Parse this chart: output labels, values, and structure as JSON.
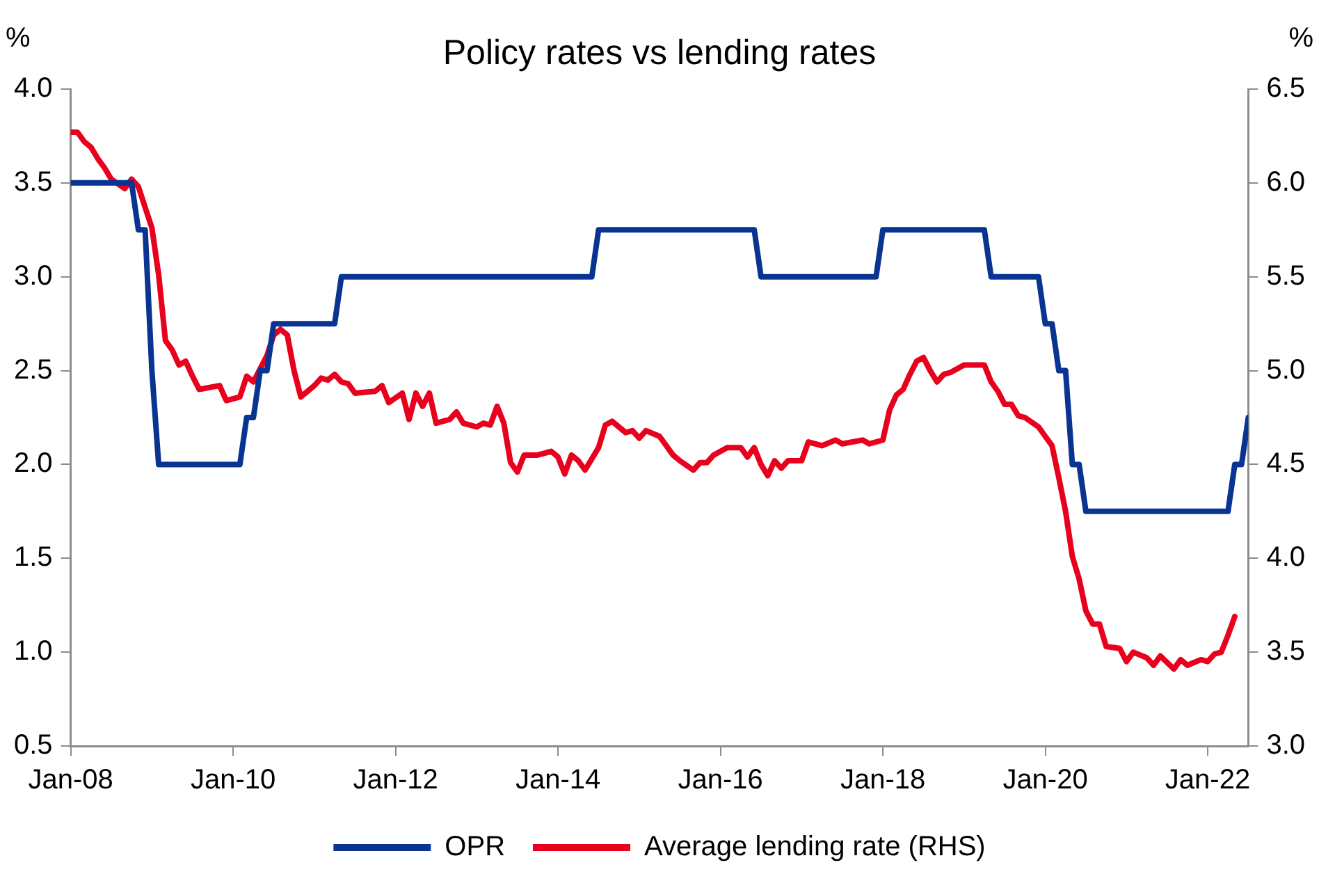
{
  "chart_data": {
    "type": "line",
    "title": "Policy rates vs lending rates",
    "ylabel": "%",
    "y2label": "%",
    "xlim": [
      "2008-01",
      "2022-07"
    ],
    "xticks": [
      {
        "value": "2008-01",
        "label": "Jan-08"
      },
      {
        "value": "2010-01",
        "label": "Jan-10"
      },
      {
        "value": "2012-01",
        "label": "Jan-12"
      },
      {
        "value": "2014-01",
        "label": "Jan-14"
      },
      {
        "value": "2016-01",
        "label": "Jan-16"
      },
      {
        "value": "2018-01",
        "label": "Jan-18"
      },
      {
        "value": "2020-01",
        "label": "Jan-20"
      },
      {
        "value": "2022-01",
        "label": "Jan-22"
      }
    ],
    "ylim": [
      0.5,
      4.0
    ],
    "yticks": [
      {
        "value": 0.5,
        "label": "0.5"
      },
      {
        "value": 1,
        "label": "1.0"
      },
      {
        "value": 1.5,
        "label": "1.5"
      },
      {
        "value": 2,
        "label": "2.0"
      },
      {
        "value": 2.5,
        "label": "2.5"
      },
      {
        "value": 3,
        "label": "3.0"
      },
      {
        "value": 3.5,
        "label": "3.5"
      },
      {
        "value": 4,
        "label": "4.0"
      }
    ],
    "y2lim": [
      3.0,
      6.5
    ],
    "y2ticks": [
      {
        "value": 3,
        "label": "3.0"
      },
      {
        "value": 3.5,
        "label": "3.5"
      },
      {
        "value": 4,
        "label": "4.0"
      },
      {
        "value": 4.5,
        "label": "4.5"
      },
      {
        "value": 5,
        "label": "5.0"
      },
      {
        "value": 5.5,
        "label": "5.5"
      },
      {
        "value": 6,
        "label": "6.0"
      },
      {
        "value": 6.5,
        "label": "6.5"
      }
    ],
    "grid": false,
    "legend": "bottom",
    "marker": "none",
    "line_style": "solid",
    "series": [
      {
        "name": "OPR",
        "color": "#0a3491",
        "axis": "y",
        "x": [
          "2008-01",
          "2008-10",
          "2008-11",
          "2008-12",
          "2009-01",
          "2009-02",
          "2010-02",
          "2010-03",
          "2010-04",
          "2010-05",
          "2010-06",
          "2010-07",
          "2011-04",
          "2011-05",
          "2014-06",
          "2014-07",
          "2016-06",
          "2016-07",
          "2017-12",
          "2018-01",
          "2019-04",
          "2019-05",
          "2019-12",
          "2020-01",
          "2020-02",
          "2020-03",
          "2020-04",
          "2020-05",
          "2020-06",
          "2020-07",
          "2022-04",
          "2022-05",
          "2022-06",
          "2022-07"
        ],
        "values": [
          3.5,
          3.5,
          3.25,
          3.25,
          2.5,
          2.0,
          2.0,
          2.25,
          2.25,
          2.5,
          2.5,
          2.75,
          2.75,
          3.0,
          3.0,
          3.25,
          3.25,
          3.0,
          3.0,
          3.25,
          3.25,
          3.0,
          3.0,
          2.75,
          2.75,
          2.5,
          2.5,
          2.0,
          2.0,
          1.75,
          1.75,
          2.0,
          2.0,
          2.25
        ]
      },
      {
        "name": "Average lending rate (RHS)",
        "color": "#e8001c",
        "axis": "y2",
        "x": [
          "2008-01",
          "2008-02",
          "2008-03",
          "2008-04",
          "2008-05",
          "2008-06",
          "2008-07",
          "2008-09",
          "2008-10",
          "2008-11",
          "2008-12",
          "2009-01",
          "2009-02",
          "2009-03",
          "2009-04",
          "2009-05",
          "2009-06",
          "2009-07",
          "2009-08",
          "2009-11",
          "2009-12",
          "2010-02",
          "2010-03",
          "2010-04",
          "2010-05",
          "2010-06",
          "2010-07",
          "2010-08",
          "2010-09",
          "2010-10",
          "2010-11",
          "2011-01",
          "2011-02",
          "2011-03",
          "2011-04",
          "2011-05",
          "2011-06",
          "2011-07",
          "2011-10",
          "2011-11",
          "2011-12",
          "2012-02",
          "2012-03",
          "2012-04",
          "2012-05",
          "2012-06",
          "2012-07",
          "2012-09",
          "2012-10",
          "2012-11",
          "2013-01",
          "2013-02",
          "2013-03",
          "2013-04",
          "2013-05",
          "2013-06",
          "2013-07",
          "2013-08",
          "2013-10",
          "2013-12",
          "2014-01",
          "2014-02",
          "2014-03",
          "2014-04",
          "2014-05",
          "2014-07",
          "2014-08",
          "2014-09",
          "2014-11",
          "2014-12",
          "2015-01",
          "2015-02",
          "2015-04",
          "2015-06",
          "2015-07",
          "2015-09",
          "2015-10",
          "2015-11",
          "2015-12",
          "2016-02",
          "2016-04",
          "2016-05",
          "2016-06",
          "2016-07",
          "2016-08",
          "2016-09",
          "2016-10",
          "2016-11",
          "2017-01",
          "2017-02",
          "2017-04",
          "2017-06",
          "2017-07",
          "2017-10",
          "2017-11",
          "2018-01",
          "2018-02",
          "2018-03",
          "2018-04",
          "2018-05",
          "2018-06",
          "2018-07",
          "2018-08",
          "2018-09",
          "2018-10",
          "2018-11",
          "2019-01",
          "2019-02",
          "2019-04",
          "2019-05",
          "2019-06",
          "2019-07",
          "2019-08",
          "2019-09",
          "2019-10",
          "2019-12",
          "2020-01",
          "2020-02",
          "2020-03",
          "2020-04",
          "2020-05",
          "2020-06",
          "2020-07",
          "2020-08",
          "2020-09",
          "2020-10",
          "2020-12",
          "2021-01",
          "2021-02",
          "2021-04",
          "2021-05",
          "2021-06",
          "2021-08",
          "2021-09",
          "2021-10",
          "2021-12",
          "2022-01",
          "2022-02",
          "2022-03",
          "2022-04",
          "2022-05"
        ],
        "values": [
          6.27,
          6.27,
          6.22,
          6.19,
          6.13,
          6.08,
          6.02,
          5.97,
          6.02,
          5.98,
          5.87,
          5.76,
          5.51,
          5.16,
          5.11,
          5.03,
          5.05,
          4.97,
          4.9,
          4.92,
          4.84,
          4.86,
          4.97,
          4.94,
          5.01,
          5.08,
          5.19,
          5.22,
          5.19,
          5.0,
          4.86,
          4.92,
          4.96,
          4.95,
          4.98,
          4.94,
          4.93,
          4.88,
          4.89,
          4.92,
          4.83,
          4.88,
          4.74,
          4.88,
          4.81,
          4.88,
          4.72,
          4.74,
          4.78,
          4.72,
          4.7,
          4.72,
          4.71,
          4.81,
          4.72,
          4.51,
          4.46,
          4.55,
          4.55,
          4.57,
          4.54,
          4.45,
          4.55,
          4.52,
          4.47,
          4.59,
          4.71,
          4.73,
          4.67,
          4.68,
          4.64,
          4.68,
          4.65,
          4.55,
          4.52,
          4.47,
          4.51,
          4.51,
          4.55,
          4.59,
          4.59,
          4.54,
          4.59,
          4.5,
          4.44,
          4.52,
          4.48,
          4.52,
          4.52,
          4.62,
          4.6,
          4.63,
          4.61,
          4.63,
          4.61,
          4.63,
          4.79,
          4.87,
          4.9,
          4.98,
          5.05,
          5.07,
          5.0,
          4.94,
          4.98,
          4.99,
          5.03,
          5.03,
          5.03,
          4.94,
          4.89,
          4.82,
          4.82,
          4.76,
          4.75,
          4.7,
          4.65,
          4.6,
          4.43,
          4.25,
          4.01,
          3.89,
          3.72,
          3.65,
          3.65,
          3.53,
          3.52,
          3.45,
          3.5,
          3.47,
          3.43,
          3.48,
          3.41,
          3.46,
          3.43,
          3.46,
          3.45,
          3.49,
          3.5,
          3.59,
          3.69
        ]
      }
    ]
  }
}
